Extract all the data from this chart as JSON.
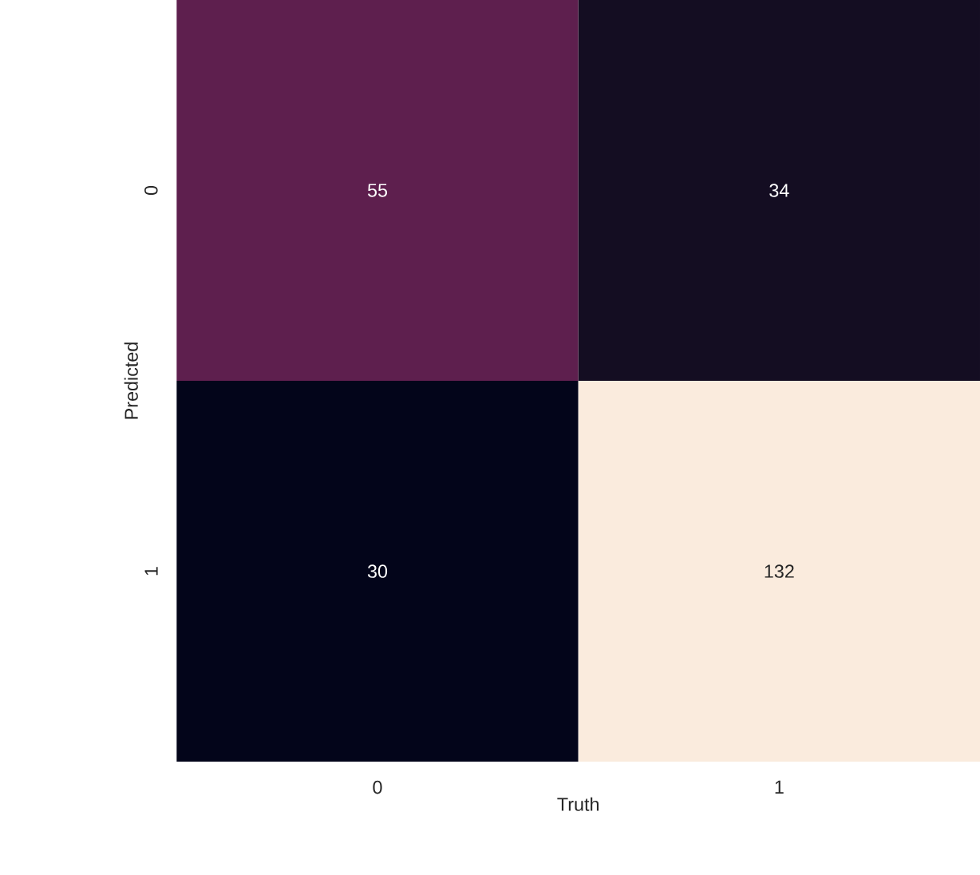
{
  "chart_data": {
    "type": "heatmap",
    "xlabel": "Truth",
    "ylabel": "Predicted",
    "categories": [
      "0",
      "1"
    ],
    "y_categories": [
      "0",
      "1"
    ],
    "cells": [
      [
        55,
        34
      ],
      [
        30,
        132
      ]
    ],
    "colors": [
      [
        "#5e1f4e",
        "#140d22"
      ],
      [
        "#03051a",
        "#faebdd"
      ]
    ],
    "data_labels": true
  }
}
